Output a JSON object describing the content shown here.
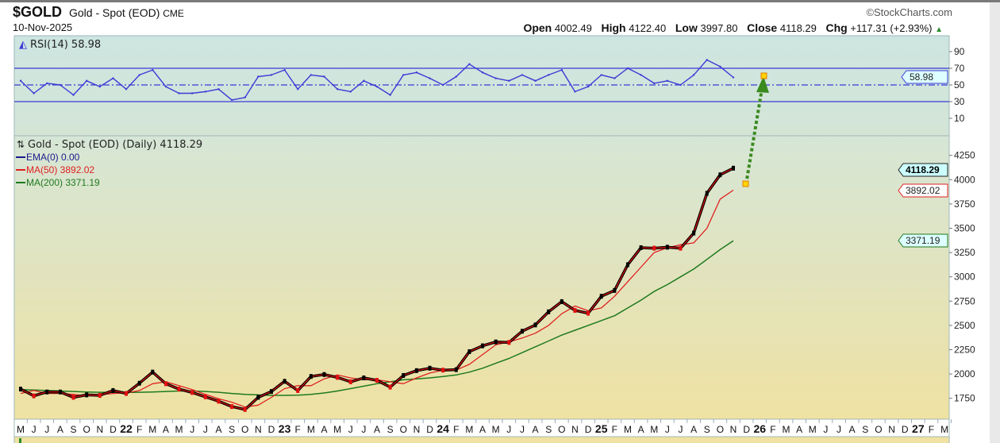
{
  "header": {
    "symbol": "$GOLD",
    "name": "Gold - Spot (EOD)",
    "exchange": "CME",
    "date": "10-Nov-2025",
    "copyright": "©StockCharts.com",
    "open_label": "Open",
    "open": "4002.49",
    "high_label": "High",
    "high": "4122.40",
    "low_label": "Low",
    "low": "3997.80",
    "close_label": "Close",
    "close": "4118.29",
    "chg_label": "Chg",
    "chg": "+117.31 (+2.93%)"
  },
  "colors": {
    "rsi": "#3b3bd6",
    "price": "#000000",
    "price_down": "#e01010",
    "ma50": "#e02020",
    "ma200": "#1e7a1e",
    "ema": "#1a1a8c",
    "arrow": "#3a8a1e",
    "marker": "#ffd400"
  },
  "chart_data": [
    {
      "type": "line",
      "title": "RSI(14) 58.98",
      "legend": "top-left",
      "ylim": [
        0,
        100
      ],
      "yticks": [
        10,
        30,
        50,
        70,
        90
      ],
      "reference_lines": [
        30,
        50,
        70
      ],
      "last_value_tag": "58.98",
      "x": [
        "2021-05",
        "2021-06",
        "2021-07",
        "2021-08",
        "2021-09",
        "2021-10",
        "2021-11",
        "2021-12",
        "2022-01",
        "2022-02",
        "2022-03",
        "2022-04",
        "2022-05",
        "2022-06",
        "2022-07",
        "2022-08",
        "2022-09",
        "2022-10",
        "2022-11",
        "2022-12",
        "2023-01",
        "2023-02",
        "2023-03",
        "2023-04",
        "2023-05",
        "2023-06",
        "2023-07",
        "2023-08",
        "2023-09",
        "2023-10",
        "2023-11",
        "2023-12",
        "2024-01",
        "2024-02",
        "2024-03",
        "2024-04",
        "2024-05",
        "2024-06",
        "2024-07",
        "2024-08",
        "2024-09",
        "2024-10",
        "2024-11",
        "2024-12",
        "2025-01",
        "2025-02",
        "2025-03",
        "2025-04",
        "2025-05",
        "2025-06",
        "2025-07",
        "2025-08",
        "2025-09",
        "2025-10",
        "2025-11"
      ],
      "series": [
        {
          "name": "RSI(14)",
          "values": [
            55,
            40,
            52,
            50,
            38,
            55,
            48,
            58,
            45,
            62,
            68,
            48,
            40,
            40,
            42,
            45,
            32,
            35,
            60,
            62,
            68,
            45,
            62,
            60,
            45,
            42,
            55,
            48,
            38,
            62,
            65,
            58,
            50,
            60,
            75,
            65,
            58,
            55,
            62,
            55,
            62,
            68,
            42,
            48,
            62,
            58,
            70,
            62,
            52,
            55,
            50,
            62,
            80,
            72,
            59
          ]
        }
      ]
    },
    {
      "type": "line",
      "title": "Gold - Spot (EOD) (Daily) 4118.29",
      "legend": "top-left",
      "legend_entries": [
        "EMA(0) 0.00",
        "MA(50) 3892.02",
        "MA(200) 3371.19"
      ],
      "ylim": [
        1650,
        4350
      ],
      "yticks": [
        1750,
        2000,
        2250,
        2500,
        2750,
        3000,
        3250,
        3500,
        3750,
        4000,
        4250
      ],
      "value_tags": {
        "close": "4118.29",
        "ma50": "3892.02",
        "ma200": "3371.19"
      },
      "xtick_labels": [
        "M",
        "J",
        "J",
        "A",
        "S",
        "O",
        "N",
        "D",
        "22",
        "F",
        "M",
        "A",
        "M",
        "J",
        "J",
        "A",
        "S",
        "O",
        "N",
        "D",
        "23",
        "F",
        "M",
        "A",
        "M",
        "J",
        "J",
        "A",
        "S",
        "O",
        "N",
        "D",
        "24",
        "F",
        "M",
        "A",
        "M",
        "J",
        "J",
        "A",
        "S",
        "O",
        "N",
        "D",
        "25",
        "F",
        "M",
        "A",
        "M",
        "J",
        "J",
        "A",
        "S",
        "O",
        "N",
        "D",
        "26",
        "F",
        "M",
        "A",
        "M",
        "J",
        "J",
        "A",
        "S",
        "O",
        "N",
        "D",
        "27",
        "F",
        "M"
      ],
      "series": [
        {
          "name": "Gold - Spot (EOD)",
          "values": [
            1845,
            1775,
            1815,
            1815,
            1760,
            1785,
            1780,
            1830,
            1800,
            1905,
            2020,
            1900,
            1845,
            1810,
            1765,
            1720,
            1665,
            1635,
            1760,
            1820,
            1925,
            1830,
            1975,
            1995,
            1965,
            1920,
            1960,
            1935,
            1865,
            1985,
            2035,
            2060,
            2040,
            2045,
            2230,
            2290,
            2330,
            2325,
            2440,
            2505,
            2640,
            2745,
            2655,
            2625,
            2800,
            2860,
            3125,
            3300,
            3295,
            3305,
            3295,
            3450,
            3860,
            4050,
            4118.29
          ]
        },
        {
          "name": "MA(50)",
          "values": [
            1800,
            1830,
            1800,
            1800,
            1790,
            1775,
            1785,
            1800,
            1805,
            1830,
            1900,
            1920,
            1880,
            1840,
            1790,
            1745,
            1710,
            1660,
            1680,
            1760,
            1850,
            1880,
            1880,
            1950,
            1990,
            1960,
            1940,
            1940,
            1920,
            1900,
            1960,
            2010,
            2040,
            2040,
            2100,
            2200,
            2300,
            2330,
            2370,
            2420,
            2500,
            2620,
            2700,
            2650,
            2680,
            2800,
            2950,
            3100,
            3250,
            3300,
            3330,
            3350,
            3500,
            3800,
            3892.02
          ]
        },
        {
          "name": "MA(200)",
          "values": [
            1840,
            1835,
            1830,
            1825,
            1820,
            1815,
            1812,
            1810,
            1810,
            1812,
            1815,
            1820,
            1825,
            1825,
            1820,
            1812,
            1800,
            1790,
            1785,
            1780,
            1780,
            1782,
            1790,
            1805,
            1825,
            1850,
            1875,
            1900,
            1920,
            1940,
            1950,
            1960,
            1975,
            1990,
            2020,
            2060,
            2110,
            2160,
            2220,
            2280,
            2340,
            2400,
            2450,
            2500,
            2550,
            2600,
            2680,
            2760,
            2850,
            2920,
            3000,
            3080,
            3180,
            3280,
            3371.19
          ]
        }
      ]
    }
  ]
}
